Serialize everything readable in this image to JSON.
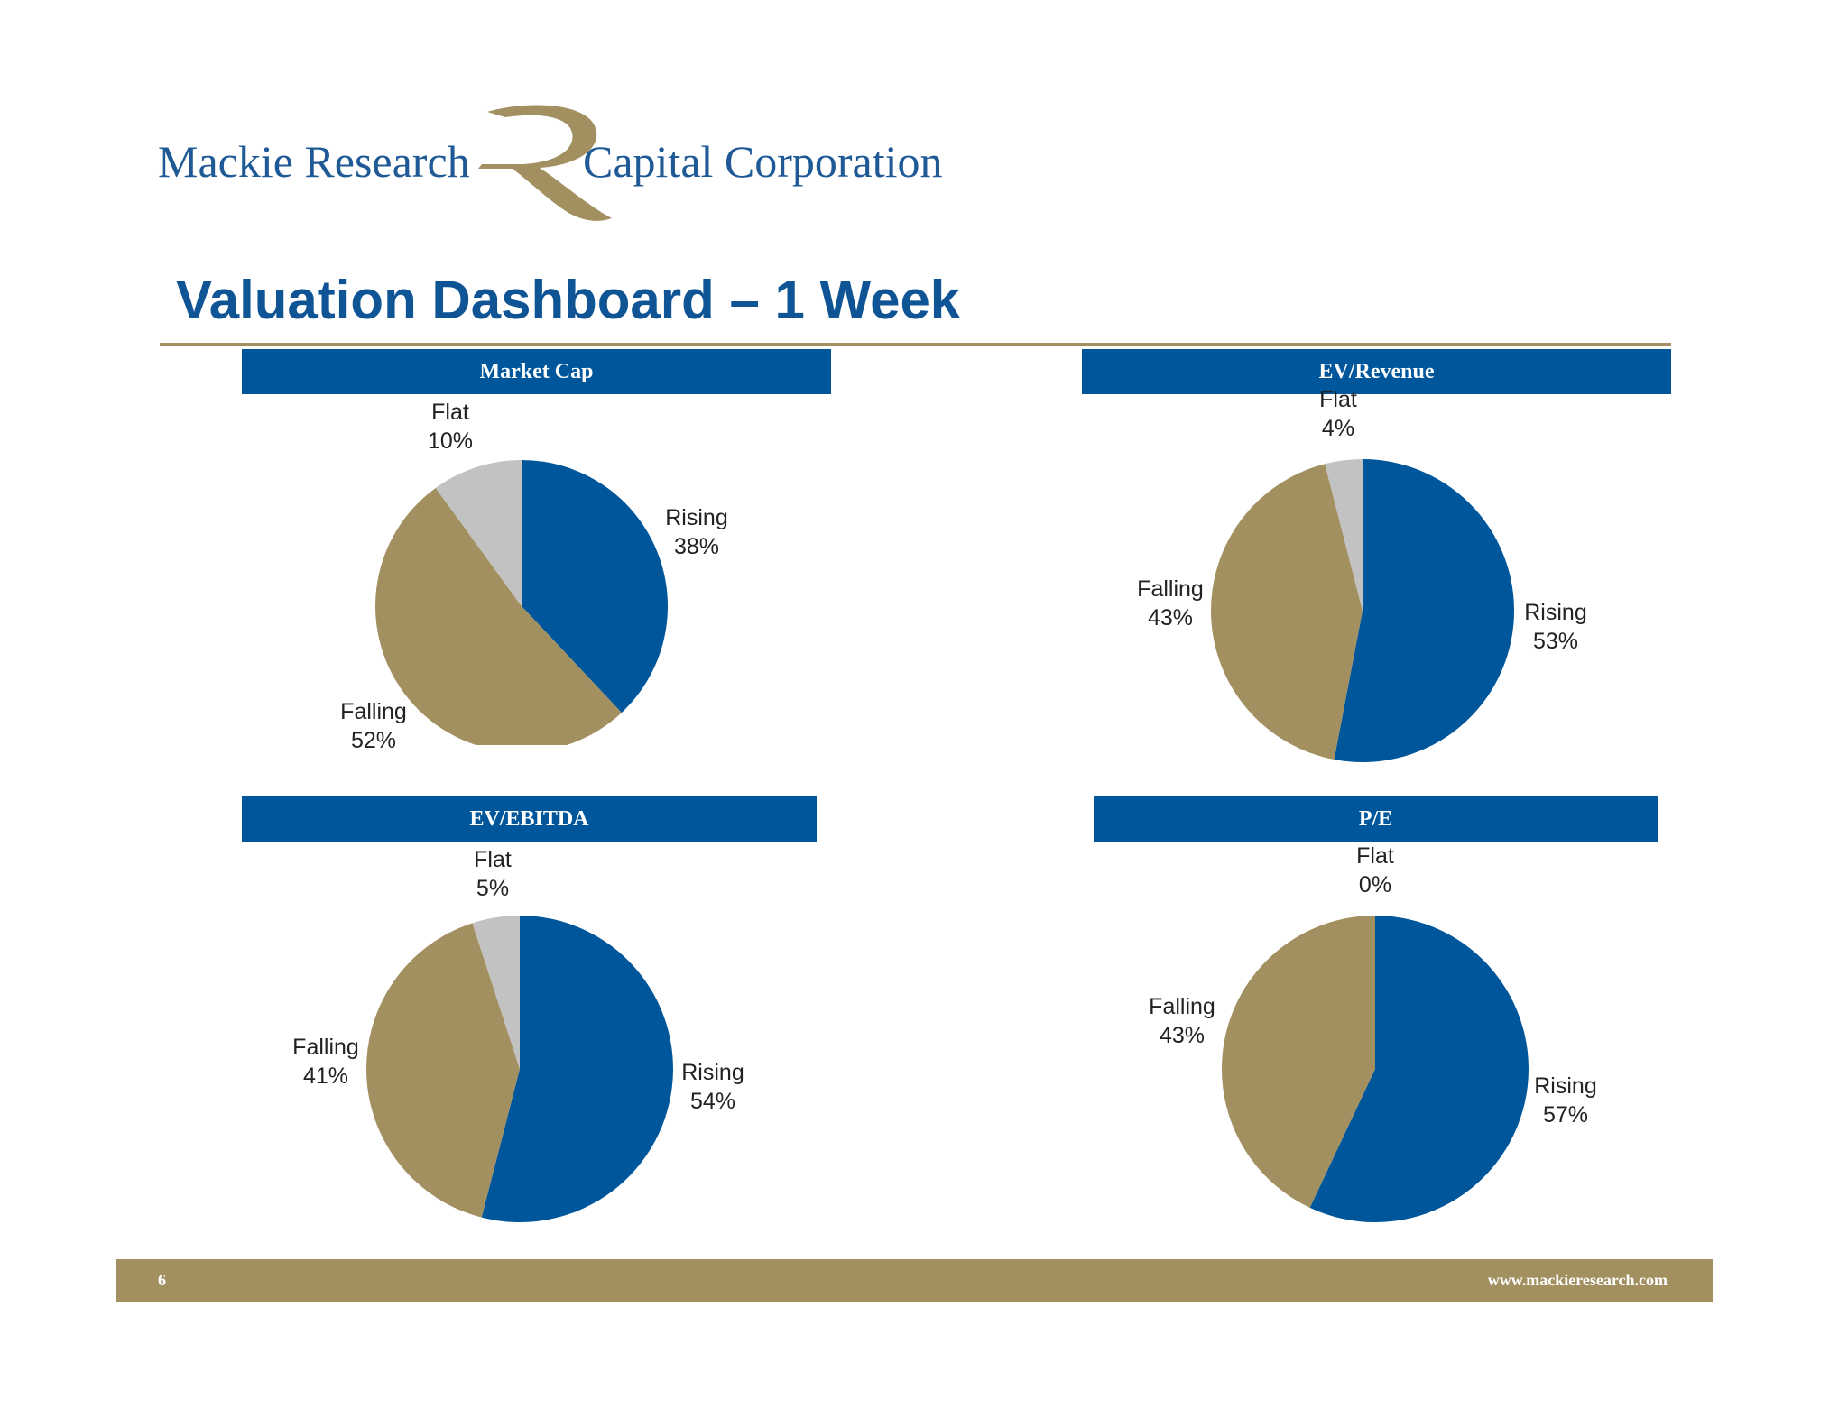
{
  "brand": {
    "name_left": "Mackie Research",
    "name_right": "Capital Corporation",
    "primary_color": "#1f5a96",
    "accent_color": "#a39060"
  },
  "title": "Valuation Dashboard – 1 Week",
  "colors": {
    "Rising": "#00569b",
    "Falling": "#a39060",
    "Flat": "#c2c2c2"
  },
  "chart_data": [
    {
      "type": "pie",
      "title": "Market Cap",
      "slices": [
        {
          "label": "Rising",
          "value": 38,
          "display": "38%"
        },
        {
          "label": "Falling",
          "value": 52,
          "display": "52%"
        },
        {
          "label": "Flat",
          "value": 10,
          "display": "10%"
        }
      ]
    },
    {
      "type": "pie",
      "title": "EV/Revenue",
      "slices": [
        {
          "label": "Rising",
          "value": 53,
          "display": "53%"
        },
        {
          "label": "Falling",
          "value": 43,
          "display": "43%"
        },
        {
          "label": "Flat",
          "value": 4,
          "display": "4%"
        }
      ]
    },
    {
      "type": "pie",
      "title": "EV/EBITDA",
      "slices": [
        {
          "label": "Rising",
          "value": 54,
          "display": "54%"
        },
        {
          "label": "Falling",
          "value": 41,
          "display": "41%"
        },
        {
          "label": "Flat",
          "value": 5,
          "display": "5%"
        }
      ]
    },
    {
      "type": "pie",
      "title": "P/E",
      "slices": [
        {
          "label": "Rising",
          "value": 57,
          "display": "57%"
        },
        {
          "label": "Falling",
          "value": 43,
          "display": "43%"
        },
        {
          "label": "Flat",
          "value": 0,
          "display": "0%"
        }
      ]
    }
  ],
  "footer": {
    "page_number": "6",
    "url": "www.mackieresearch.com"
  }
}
